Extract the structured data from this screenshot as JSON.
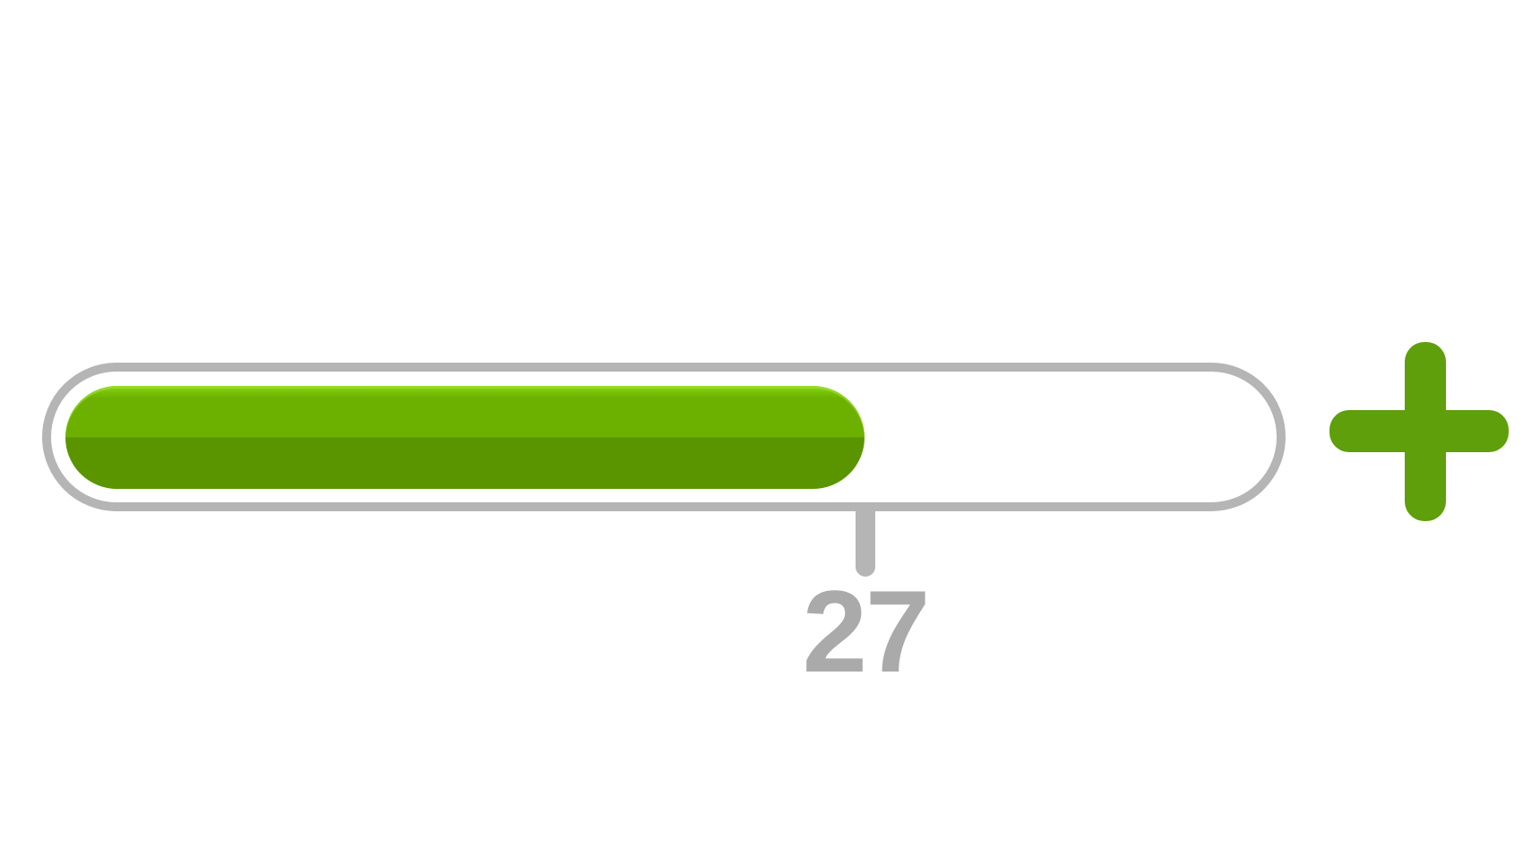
{
  "progress": {
    "value": 27,
    "value_label": "27",
    "fill_fraction": 0.64,
    "colors": {
      "track_border": "#b5b5b5",
      "fill_top": "#6cb000",
      "fill_bottom": "#5a9500",
      "label": "#aaaaaa"
    }
  },
  "increment_button": {
    "icon": "plus-icon",
    "color": "#5f9f0b"
  }
}
